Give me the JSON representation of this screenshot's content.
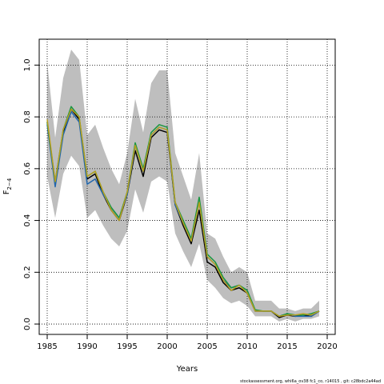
{
  "chart_data": {
    "type": "line",
    "xlabel": "Years",
    "ylabel": "F",
    "ylabel_sub": "2−4",
    "xlim": [
      1984,
      2021
    ],
    "ylim": [
      -0.04,
      1.1
    ],
    "xticks": [
      1985,
      1990,
      1995,
      2000,
      2005,
      2010,
      2015,
      2020
    ],
    "yticks": [
      0.0,
      0.2,
      0.4,
      0.6,
      0.8,
      1.0
    ],
    "ytick_labels": [
      "0.0",
      "0.2",
      "0.4",
      "0.6",
      "0.8",
      "1.0"
    ],
    "grid": true,
    "band_color": "#bebebe",
    "x": [
      1985,
      1986,
      1987,
      1988,
      1989,
      1990,
      1991,
      1992,
      1993,
      1994,
      1995,
      1996,
      1997,
      1998,
      1999,
      2000,
      2001,
      2002,
      2003,
      2004,
      2005,
      2006,
      2007,
      2008,
      2009,
      2010,
      2011,
      2012,
      2013,
      2014,
      2015,
      2016,
      2017,
      2018,
      2019
    ],
    "band_upper": [
      1.01,
      0.72,
      0.95,
      1.06,
      1.02,
      0.73,
      0.77,
      0.68,
      0.6,
      0.54,
      0.66,
      0.87,
      0.74,
      0.93,
      0.98,
      0.98,
      0.66,
      0.57,
      0.48,
      0.66,
      0.35,
      0.33,
      0.26,
      0.2,
      0.22,
      0.2,
      0.09,
      0.09,
      0.09,
      0.06,
      0.06,
      0.05,
      0.06,
      0.06,
      0.09
    ],
    "band_lower": [
      0.57,
      0.41,
      0.58,
      0.65,
      0.61,
      0.41,
      0.44,
      0.38,
      0.33,
      0.3,
      0.36,
      0.52,
      0.43,
      0.55,
      0.57,
      0.55,
      0.35,
      0.28,
      0.22,
      0.31,
      0.17,
      0.14,
      0.1,
      0.08,
      0.09,
      0.07,
      0.03,
      0.03,
      0.03,
      0.01,
      0.02,
      0.01,
      0.02,
      0.02,
      0.03
    ],
    "series": [
      {
        "color": "#000000",
        "values": [
          0.78,
          0.54,
          0.74,
          0.83,
          0.79,
          0.56,
          0.58,
          0.5,
          0.44,
          0.4,
          0.5,
          0.67,
          0.57,
          0.72,
          0.75,
          0.74,
          0.46,
          0.38,
          0.31,
          0.44,
          0.24,
          0.22,
          0.16,
          0.13,
          0.14,
          0.12,
          0.05,
          0.05,
          0.05,
          0.025,
          0.035,
          0.03,
          0.035,
          0.03,
          0.05
        ]
      },
      {
        "color": "#2166ac",
        "values": [
          0.77,
          0.53,
          0.73,
          0.82,
          0.78,
          0.54,
          0.56,
          0.5,
          0.45,
          0.41,
          0.5,
          0.69,
          0.59,
          0.73,
          0.76,
          0.75,
          0.46,
          0.39,
          0.32,
          0.47,
          0.26,
          0.23,
          0.17,
          0.14,
          0.15,
          0.13,
          0.05,
          0.05,
          0.05,
          0.03,
          0.04,
          0.03,
          0.03,
          0.03,
          0.05
        ]
      },
      {
        "color": "#1a9641",
        "values": [
          0.78,
          0.55,
          0.75,
          0.84,
          0.8,
          0.57,
          0.59,
          0.51,
          0.45,
          0.41,
          0.51,
          0.7,
          0.6,
          0.74,
          0.77,
          0.76,
          0.47,
          0.4,
          0.33,
          0.49,
          0.27,
          0.24,
          0.18,
          0.14,
          0.15,
          0.13,
          0.055,
          0.05,
          0.05,
          0.03,
          0.04,
          0.035,
          0.035,
          0.04,
          0.05
        ]
      },
      {
        "color": "#b8a020",
        "values": [
          0.79,
          0.55,
          0.75,
          0.83,
          0.8,
          0.57,
          0.59,
          0.51,
          0.44,
          0.4,
          0.51,
          0.69,
          0.59,
          0.73,
          0.76,
          0.75,
          0.47,
          0.39,
          0.32,
          0.47,
          0.26,
          0.23,
          0.17,
          0.13,
          0.15,
          0.12,
          0.05,
          0.05,
          0.05,
          0.03,
          0.035,
          0.035,
          0.04,
          0.035,
          0.05
        ]
      }
    ]
  },
  "footer": "stockassessment.org, whi6a_ov38 fc1_co, r14015 , git: c28bdc2a44ad"
}
